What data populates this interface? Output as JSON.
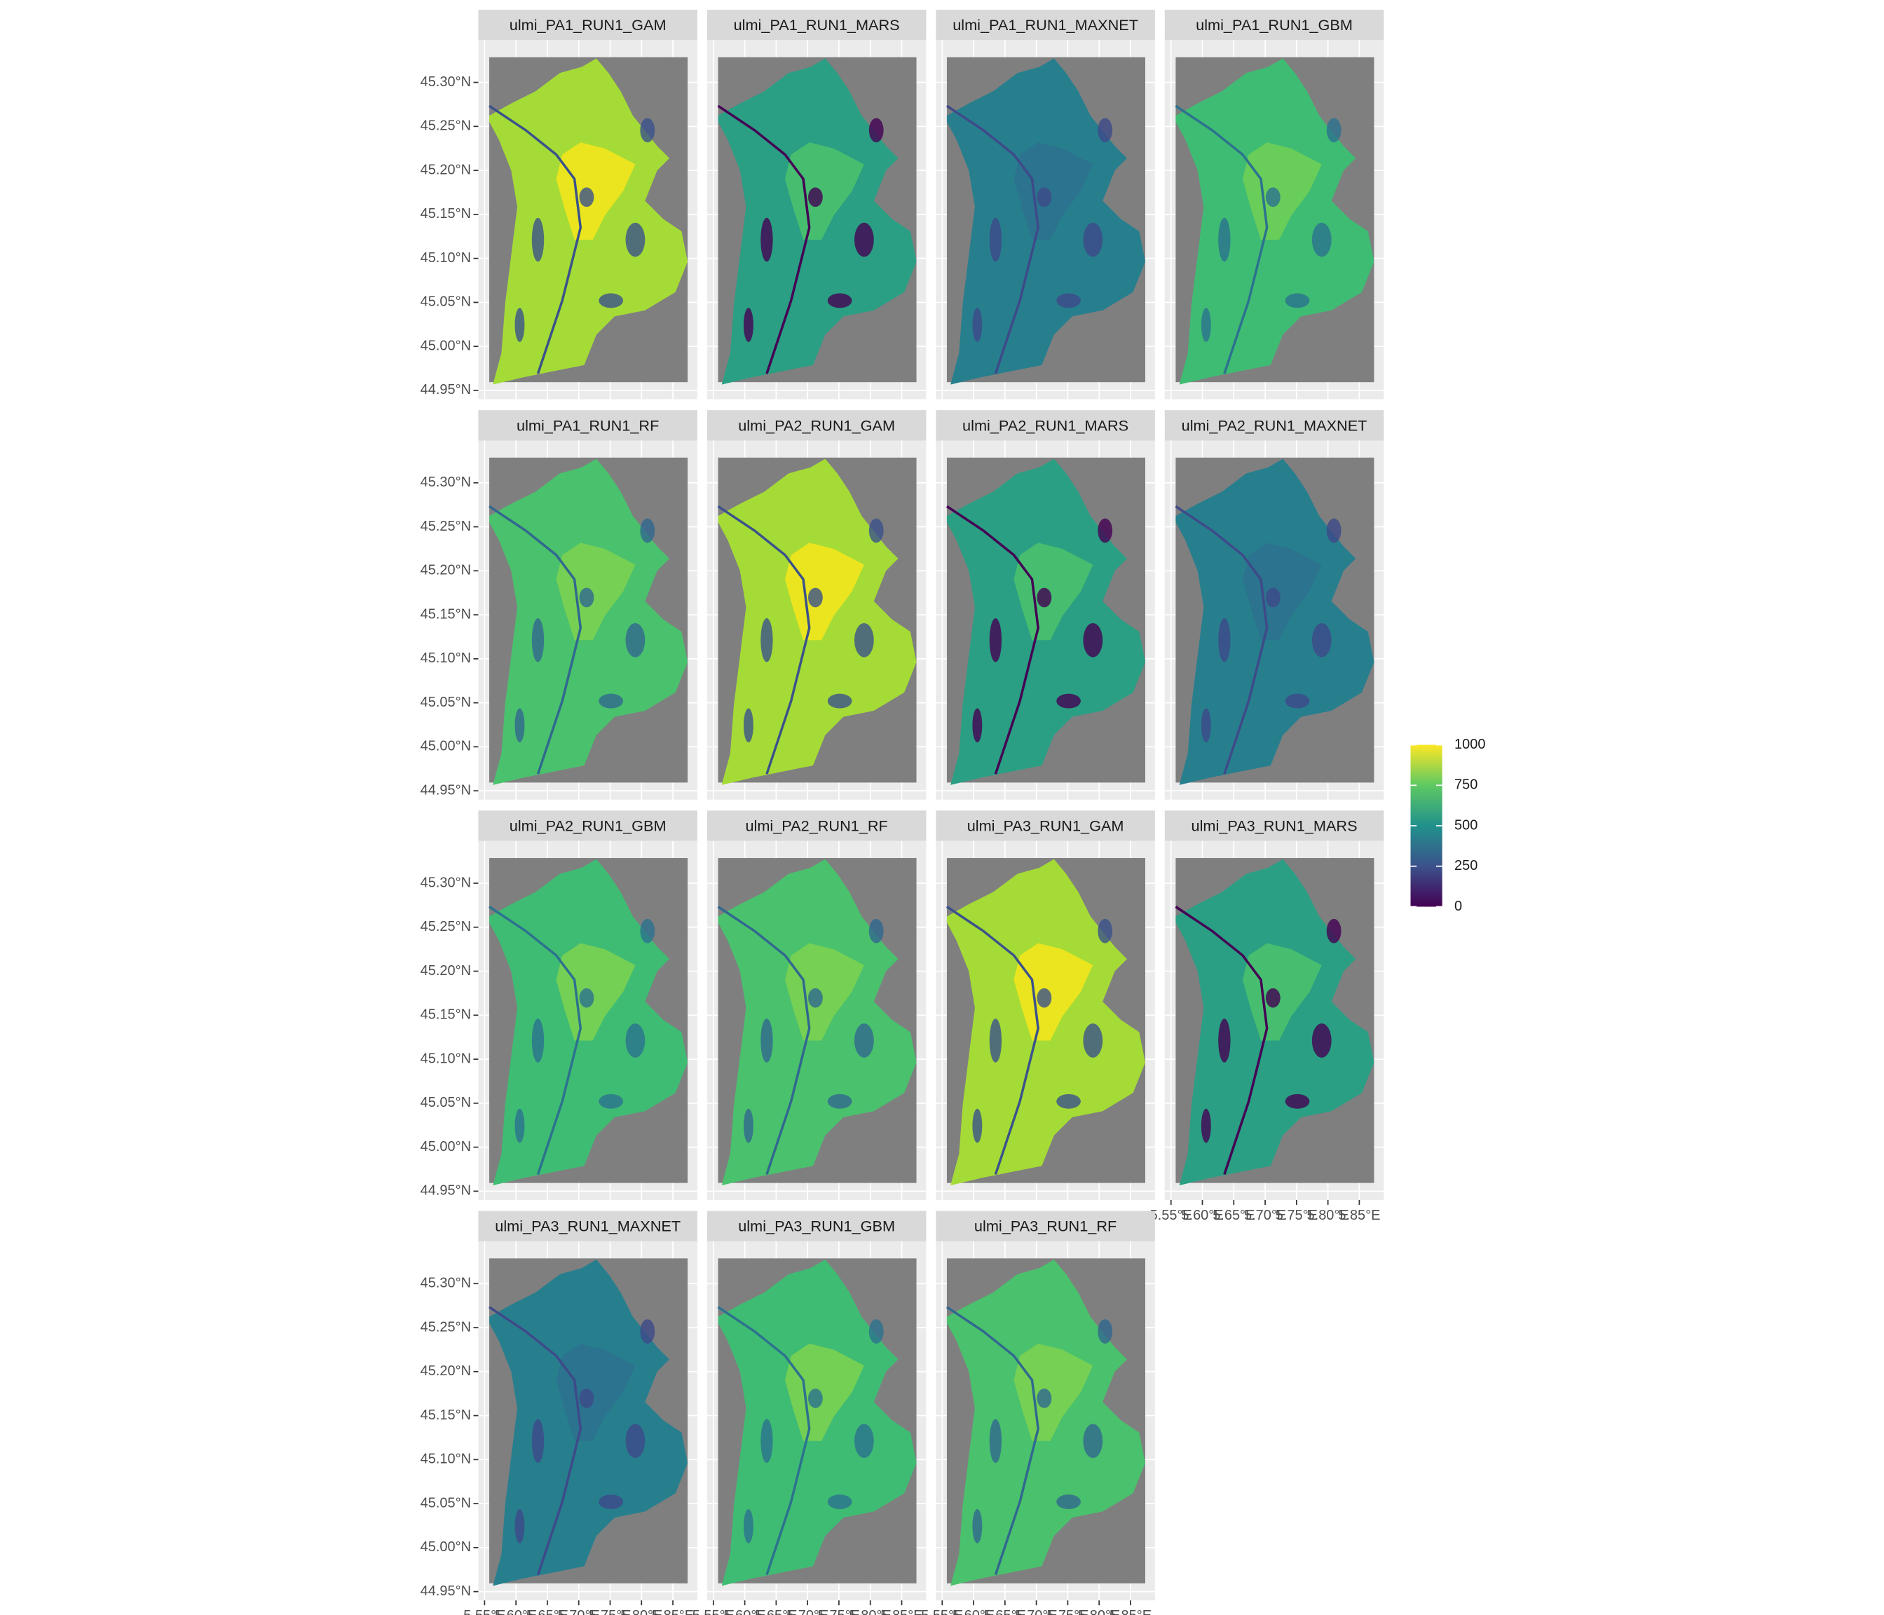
{
  "chart_data": {
    "type": "raster-facets",
    "facets": [
      {
        "title": "ulmi_PA1_RUN1_GAM",
        "colors": [
          "#f2e51d",
          "#a5db36",
          "#3b528b"
        ]
      },
      {
        "title": "ulmi_PA1_RUN1_MARS",
        "colors": [
          "#4ac16d",
          "#2a9f83",
          "#440154"
        ]
      },
      {
        "title": "ulmi_PA1_RUN1_MAXNET",
        "colors": [
          "#2c728e",
          "#277f8e",
          "#3e4a89"
        ]
      },
      {
        "title": "ulmi_PA1_RUN1_GBM",
        "colors": [
          "#6ece58",
          "#3fbc73",
          "#2c728e"
        ]
      },
      {
        "title": "ulmi_PA1_RUN1_RF",
        "colors": [
          "#7ad151",
          "#4ac16d",
          "#31688e"
        ]
      },
      {
        "title": "ulmi_PA2_RUN1_GAM",
        "colors": [
          "#f2e51d",
          "#a5db36",
          "#3b528b"
        ]
      },
      {
        "title": "ulmi_PA2_RUN1_MARS",
        "colors": [
          "#4ac16d",
          "#2a9f83",
          "#440154"
        ]
      },
      {
        "title": "ulmi_PA2_RUN1_MAXNET",
        "colors": [
          "#2c728e",
          "#277f8e",
          "#3e4a89"
        ]
      },
      {
        "title": "ulmi_PA2_RUN1_GBM",
        "colors": [
          "#7ad151",
          "#3fbc73",
          "#2c728e"
        ]
      },
      {
        "title": "ulmi_PA2_RUN1_RF",
        "colors": [
          "#7ad151",
          "#4ac16d",
          "#31688e"
        ]
      },
      {
        "title": "ulmi_PA3_RUN1_GAM",
        "colors": [
          "#f2e51d",
          "#a5db36",
          "#3b528b"
        ]
      },
      {
        "title": "ulmi_PA3_RUN1_MARS",
        "colors": [
          "#4ac16d",
          "#2a9f83",
          "#440154"
        ]
      },
      {
        "title": "ulmi_PA3_RUN1_MAXNET",
        "colors": [
          "#2c728e",
          "#277f8e",
          "#3e4a89"
        ]
      },
      {
        "title": "ulmi_PA3_RUN1_GBM",
        "colors": [
          "#7ad151",
          "#3fbc73",
          "#2c728e"
        ]
      },
      {
        "title": "ulmi_PA3_RUN1_RF",
        "colors": [
          "#7ad151",
          "#4ac16d",
          "#31688e"
        ]
      }
    ],
    "xlim": [
      5.54,
      5.889
    ],
    "ylim": [
      44.94,
      45.348
    ],
    "xticks": [
      {
        "value": 5.55,
        "label": "5.55°E"
      },
      {
        "value": 5.6,
        "label": "5.60°E"
      },
      {
        "value": 5.65,
        "label": "5.65°E"
      },
      {
        "value": 5.7,
        "label": "5.70°E"
      },
      {
        "value": 5.75,
        "label": "5.75°E"
      },
      {
        "value": 5.8,
        "label": "5.80°E"
      },
      {
        "value": 5.85,
        "label": "5.85°E"
      }
    ],
    "yticks": [
      {
        "value": 44.95,
        "label": "44.95°N"
      },
      {
        "value": 45.0,
        "label": "45.00°N"
      },
      {
        "value": 45.05,
        "label": "45.05°N"
      },
      {
        "value": 45.1,
        "label": "45.10°N"
      },
      {
        "value": 45.15,
        "label": "45.15°N"
      },
      {
        "value": 45.2,
        "label": "45.20°N"
      },
      {
        "value": 45.25,
        "label": "45.25°N"
      },
      {
        "value": 45.3,
        "label": "45.30°N"
      }
    ],
    "legend": {
      "lim": [
        0,
        1000
      ],
      "ticks": [
        0,
        250,
        500,
        750,
        1000
      ],
      "colors": [
        "#440154",
        "#3b528b",
        "#21918c",
        "#5ec962",
        "#fde725"
      ]
    }
  }
}
